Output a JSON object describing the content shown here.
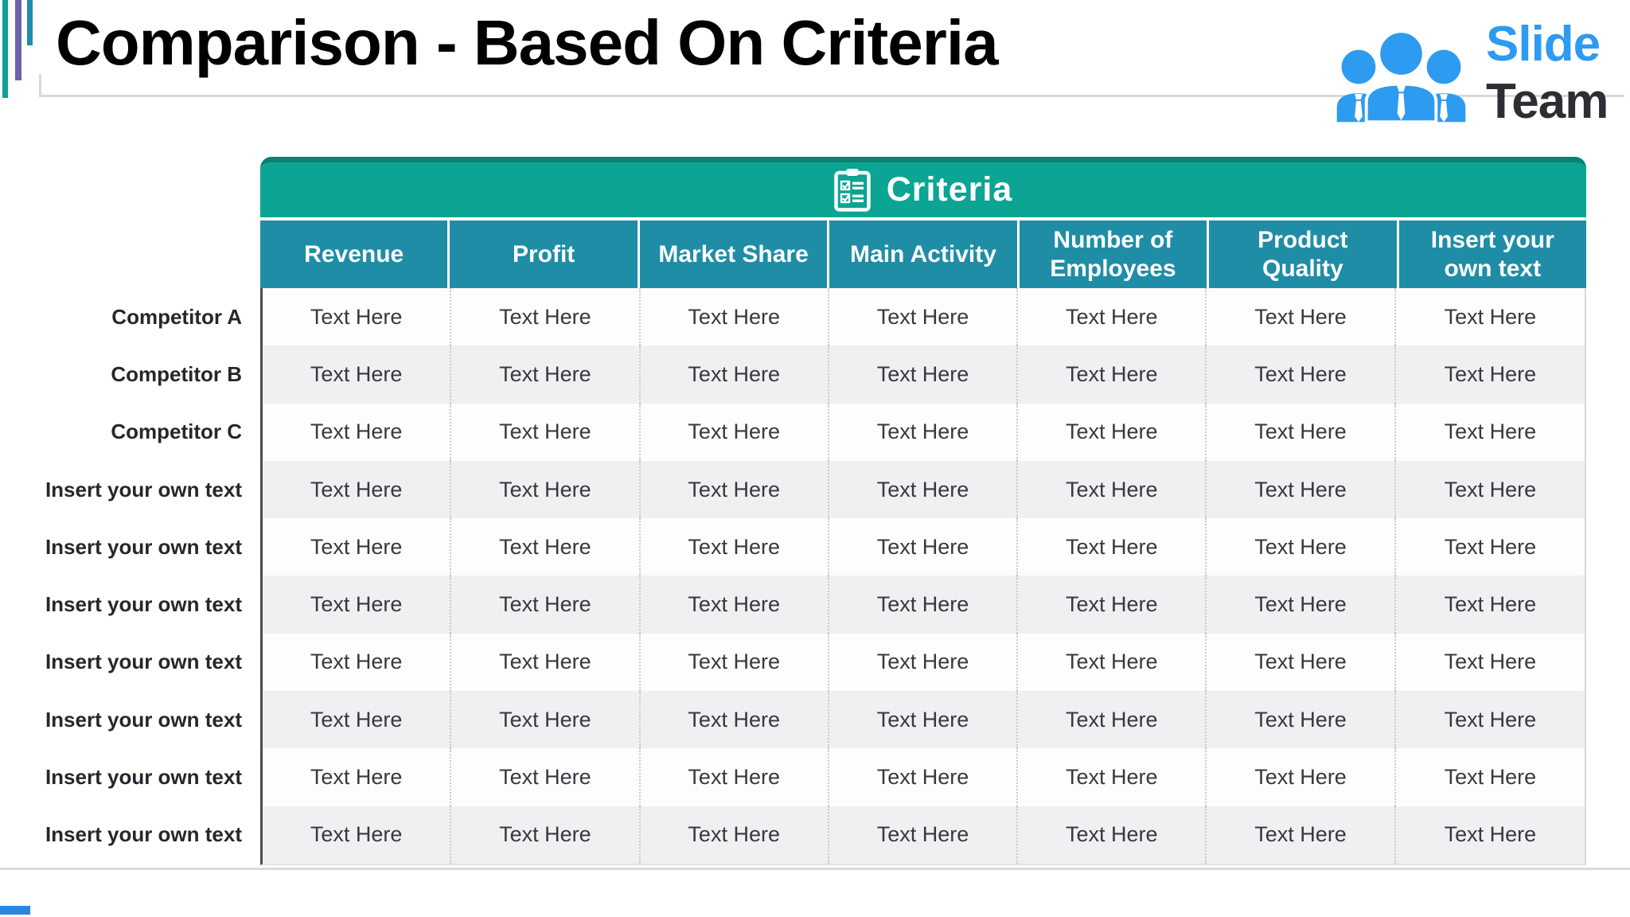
{
  "page": {
    "title": "Comparison - Based On Criteria"
  },
  "logo": {
    "line1": "Slide",
    "line2": "Team",
    "blue": "#2d9bf0",
    "dark": "#2e2d33"
  },
  "table": {
    "banner": {
      "label": "Criteria",
      "icon": "clipboard-checklist-icon"
    },
    "columns": [
      "Revenue",
      "Profit",
      "Market Share",
      "Main Activity",
      "Number of Employees",
      "Product Quality",
      "Insert your own text"
    ],
    "rows": [
      {
        "label": "Competitor A",
        "cells": [
          "Text Here",
          "Text Here",
          "Text Here",
          "Text Here",
          "Text Here",
          "Text Here",
          "Text Here"
        ]
      },
      {
        "label": "Competitor B",
        "cells": [
          "Text Here",
          "Text Here",
          "Text Here",
          "Text Here",
          "Text Here",
          "Text Here",
          "Text Here"
        ]
      },
      {
        "label": "Competitor C",
        "cells": [
          "Text Here",
          "Text Here",
          "Text Here",
          "Text Here",
          "Text Here",
          "Text Here",
          "Text Here"
        ]
      },
      {
        "label": "Insert your own text",
        "cells": [
          "Text Here",
          "Text Here",
          "Text Here",
          "Text Here",
          "Text Here",
          "Text Here",
          "Text Here"
        ]
      },
      {
        "label": "Insert your own text",
        "cells": [
          "Text Here",
          "Text Here",
          "Text Here",
          "Text Here",
          "Text Here",
          "Text Here",
          "Text Here"
        ]
      },
      {
        "label": "Insert your own text",
        "cells": [
          "Text Here",
          "Text Here",
          "Text Here",
          "Text Here",
          "Text Here",
          "Text Here",
          "Text Here"
        ]
      },
      {
        "label": "Insert your own text",
        "cells": [
          "Text Here",
          "Text Here",
          "Text Here",
          "Text Here",
          "Text Here",
          "Text Here",
          "Text Here"
        ]
      },
      {
        "label": "Insert your own text",
        "cells": [
          "Text Here",
          "Text Here",
          "Text Here",
          "Text Here",
          "Text Here",
          "Text Here",
          "Text Here"
        ]
      },
      {
        "label": "Insert your own text",
        "cells": [
          "Text Here",
          "Text Here",
          "Text Here",
          "Text Here",
          "Text Here",
          "Text Here",
          "Text Here"
        ]
      },
      {
        "label": "Insert your own text",
        "cells": [
          "Text Here",
          "Text Here",
          "Text Here",
          "Text Here",
          "Text Here",
          "Text Here",
          "Text Here"
        ]
      }
    ],
    "colors": {
      "banner_bg": "#0ca493",
      "banner_top_edge": "#0a8174",
      "header_bg": "#1f8da6",
      "row_base": "#fdfdfe",
      "row_alt": "#f0eff1"
    }
  },
  "decor": {
    "accent_bars": [
      {
        "name": "teal",
        "color": "#0ba295"
      },
      {
        "name": "purple",
        "color": "#6a62ac"
      },
      {
        "name": "blue",
        "color": "#1f8ab0"
      }
    ],
    "bottom_accent_color": "#2b86e0"
  }
}
